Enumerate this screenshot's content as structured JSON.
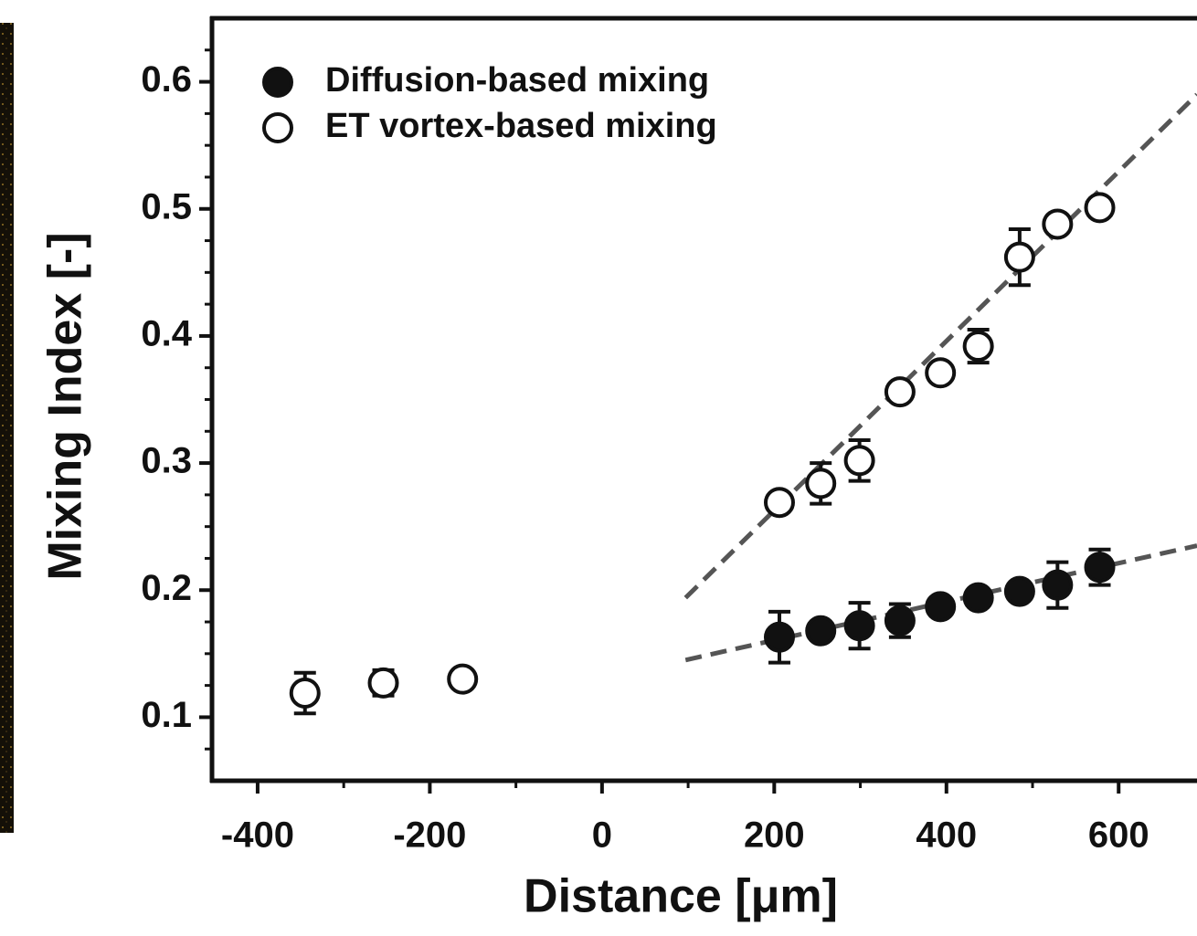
{
  "chart_data": {
    "type": "scatter",
    "x_label": "Distance [μm]",
    "y_label": "Mixing Index [-]",
    "xlim": [
      -453,
      691
    ],
    "ylim": [
      0.05,
      0.65
    ],
    "xticks": [
      -400,
      -200,
      0,
      200,
      400,
      600
    ],
    "xminorticks": [
      -300,
      -100,
      100,
      300,
      500
    ],
    "yticks": [
      0.1,
      0.2,
      0.3,
      0.4,
      0.5,
      0.6
    ],
    "yminorticks": [
      0.075,
      0.125,
      0.15,
      0.175,
      0.225,
      0.25,
      0.275,
      0.325,
      0.35,
      0.375,
      0.425,
      0.45,
      0.475,
      0.525,
      0.55,
      0.575,
      0.625
    ],
    "legend": "upper left",
    "series": [
      {
        "name": "Diffusion-based mixing",
        "color": "#111111",
        "filled": true,
        "x": [
          206,
          254,
          299,
          346,
          393,
          437,
          485,
          529,
          578
        ],
        "values": [
          0.163,
          0.168,
          0.172,
          0.176,
          0.187,
          0.194,
          0.199,
          0.204,
          0.218
        ],
        "errors": [
          0.02,
          0.005,
          0.018,
          0.013,
          0.003,
          0.003,
          0.003,
          0.018,
          0.014
        ]
      },
      {
        "name": "ET vortex-based mixing",
        "color": "#111111",
        "filled": false,
        "x": [
          -345,
          -254,
          -162,
          206,
          254,
          299,
          346,
          393,
          437,
          485,
          529,
          578
        ],
        "values": [
          0.119,
          0.127,
          0.13,
          0.269,
          0.284,
          0.302,
          0.356,
          0.371,
          0.392,
          0.462,
          0.488,
          0.501
        ],
        "errors": [
          0.016,
          0.01,
          0.007,
          0.005,
          0.016,
          0.016,
          0.005,
          0.003,
          0.013,
          0.022,
          0.005,
          0.005
        ]
      }
    ],
    "fit_lines": [
      {
        "color": "#555555",
        "x": [
          97,
          691
        ],
        "values": [
          0.194,
          0.59
        ]
      },
      {
        "color": "#555555",
        "x": [
          97,
          691
        ],
        "values": [
          0.145,
          0.235
        ]
      }
    ]
  }
}
